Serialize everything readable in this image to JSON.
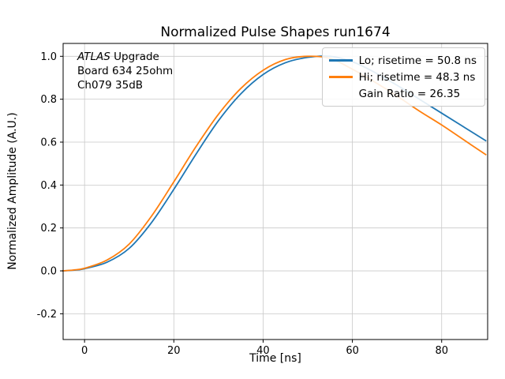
{
  "title": "Normalized Pulse Shapes run1674",
  "annotation": {
    "atlas": "ATLAS",
    "upgrade": " Upgrade",
    "line2": "Board 634 25ohm",
    "line3": "Ch079 35dB"
  },
  "chart_data": {
    "type": "line",
    "title": "Normalized Pulse Shapes run1674",
    "xlabel": "Time [ns]",
    "ylabel": "Normalized Amplitude (A.U.)",
    "xlim": [
      -4.8,
      90.3
    ],
    "ylim": [
      -0.32,
      1.06
    ],
    "xticks": [
      0,
      20,
      40,
      60,
      80
    ],
    "xticklabels": [
      "0",
      "20",
      "40",
      "60",
      "80"
    ],
    "yticks": [
      -0.2,
      0.0,
      0.2,
      0.4,
      0.6,
      0.8,
      1.0
    ],
    "yticklabels": [
      "-0.2",
      "0.0",
      "0.2",
      "0.4",
      "0.6",
      "0.8",
      "1.0"
    ],
    "grid": true,
    "legend_position": "upper right",
    "legend_extra": "Gain Ratio = 26.35",
    "series": [
      {
        "name": "Lo; risetime = 50.8 ns",
        "color": "#1f77b4",
        "x": [
          -5,
          -2.5,
          0,
          5,
          10,
          15,
          20,
          25,
          30,
          35,
          40,
          45,
          50,
          55,
          60,
          65,
          70,
          75,
          80,
          85,
          90
        ],
        "y": [
          0.0,
          0.003,
          0.01,
          0.04,
          0.105,
          0.225,
          0.38,
          0.545,
          0.7,
          0.825,
          0.915,
          0.97,
          0.995,
          1.0,
          0.975,
          0.925,
          0.865,
          0.8,
          0.735,
          0.67,
          0.605
        ]
      },
      {
        "name": "Hi; risetime = 48.3 ns",
        "color": "#ff7f0e",
        "x": [
          -5,
          -2.5,
          0,
          5,
          10,
          15,
          20,
          25,
          30,
          35,
          40,
          45,
          50,
          55,
          60,
          65,
          70,
          75,
          80,
          85,
          90
        ],
        "y": [
          0.0,
          0.004,
          0.012,
          0.05,
          0.125,
          0.255,
          0.415,
          0.58,
          0.73,
          0.85,
          0.935,
          0.985,
          1.0,
          0.99,
          0.94,
          0.88,
          0.815,
          0.745,
          0.68,
          0.61,
          0.54
        ]
      }
    ]
  }
}
